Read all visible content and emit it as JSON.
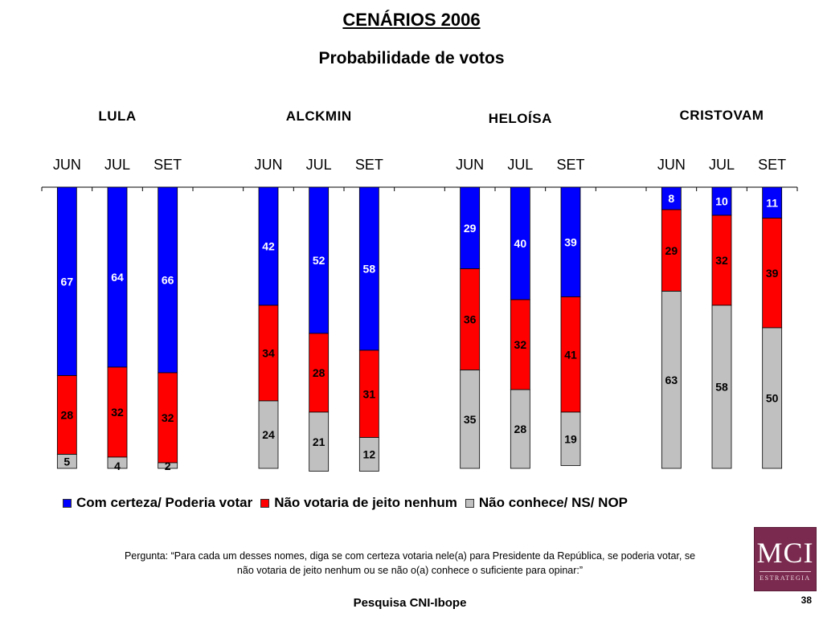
{
  "slide": {
    "title": "CENÁRIOS 2006",
    "subtitle": "Probabilidade de votos",
    "question": "Pergunta: “Para cada um desses nomes, diga se com certeza votaria nele(a) para Presidente da República, se poderia votar, se não votaria de jeito nenhum ou se não o(a) conhece o suficiente para opinar:”",
    "source": "Pesquisa CNI-Ibope",
    "page_number": "38",
    "logo": {
      "text": "MCI",
      "subtext": "ESTRATEGIA"
    }
  },
  "chart_data": {
    "type": "bar",
    "stacked": true,
    "groups": [
      {
        "name": "LULA",
        "months": [
          "JUN",
          "JUL",
          "SET"
        ],
        "values": {
          "certeza": [
            67,
            64,
            66
          ],
          "nao_votaria": [
            28,
            32,
            32
          ],
          "nao_conhece": [
            5,
            4,
            2
          ]
        }
      },
      {
        "name": "ALCKMIN",
        "months": [
          "JUN",
          "JUL",
          "SET"
        ],
        "values": {
          "certeza": [
            42,
            52,
            58
          ],
          "nao_votaria": [
            34,
            28,
            31
          ],
          "nao_conhece": [
            24,
            21,
            12
          ]
        }
      },
      {
        "name": "HELOÍSA",
        "months": [
          "JUN",
          "JUL",
          "SET"
        ],
        "values": {
          "certeza": [
            29,
            40,
            39
          ],
          "nao_votaria": [
            36,
            32,
            41
          ],
          "nao_conhece": [
            35,
            28,
            19
          ]
        }
      },
      {
        "name": "CRISTOVAM",
        "months": [
          "JUN",
          "JUL",
          "SET"
        ],
        "values": {
          "certeza": [
            8,
            10,
            11
          ],
          "nao_votaria": [
            29,
            32,
            39
          ],
          "nao_conhece": [
            63,
            58,
            50
          ]
        }
      }
    ],
    "series": [
      {
        "key": "certeza",
        "name": "Com certeza/ Poderia votar",
        "color": "#0000ff"
      },
      {
        "key": "nao_votaria",
        "name": "Não votaria de jeito nenhum",
        "color": "#ff0000"
      },
      {
        "key": "nao_conhece",
        "name": "Não conhece/ NS/ NOP",
        "color": "#c0c0c0"
      }
    ],
    "ylim": [
      0,
      100
    ],
    "legend_position": "bottom"
  }
}
